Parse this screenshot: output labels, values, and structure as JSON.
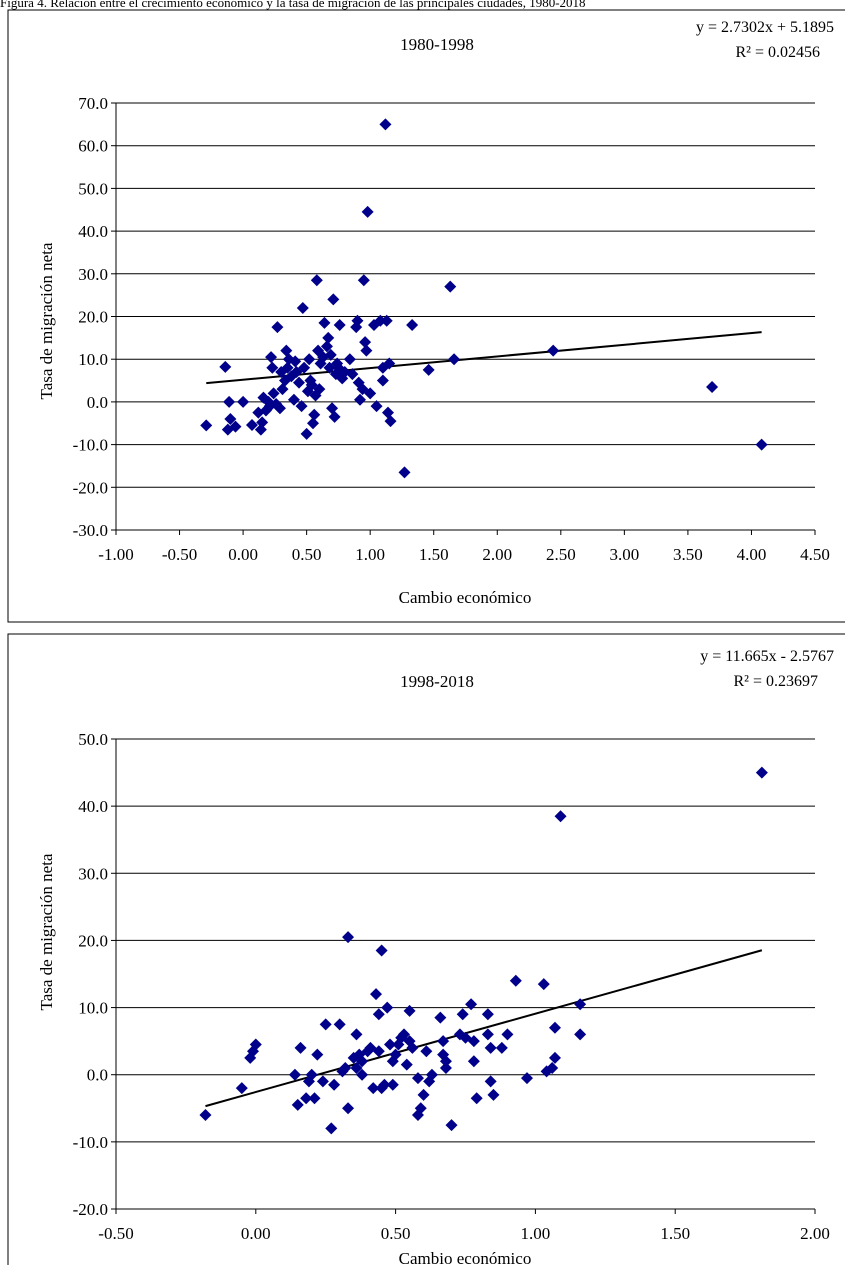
{
  "caption": "Figura 4. Relación entre el crecimiento económico y la tasa de migración de las principales ciudades, 1980-2018",
  "chart_data": [
    {
      "type": "scatter",
      "title": "1980-1998",
      "xlabel": "Cambio económico",
      "ylabel": "Tasa de migración neta",
      "xlim": [
        -1.0,
        4.5
      ],
      "ylim": [
        -30.0,
        70.0
      ],
      "xticks": [
        "-1.00",
        "-0.50",
        "0.00",
        "0.50",
        "1.00",
        "1.50",
        "2.00",
        "2.50",
        "3.00",
        "3.50",
        "4.00",
        "4.50"
      ],
      "yticks": [
        "70.0",
        "60.0",
        "50.0",
        "40.0",
        "30.0",
        "20.0",
        "10.0",
        "0.0",
        "-10.0",
        "-20.0",
        "-30.0"
      ],
      "grid": "horizontal",
      "marker_color": "#00008B",
      "trendline": {
        "slope": 2.7302,
        "intercept": 5.1895,
        "x_range": [
          -0.29,
          4.08
        ]
      },
      "equation": "y = 2.7302x + 5.1895",
      "r2": "R² = 0.02456",
      "points": [
        [
          -0.29,
          -5.5
        ],
        [
          -0.14,
          8.2
        ],
        [
          -0.12,
          -6.5
        ],
        [
          -0.11,
          0.0
        ],
        [
          -0.1,
          -4.0
        ],
        [
          -0.06,
          -5.8
        ],
        [
          0.0,
          0.0
        ],
        [
          0.07,
          -5.4
        ],
        [
          0.12,
          -2.5
        ],
        [
          0.14,
          -6.5
        ],
        [
          0.15,
          -4.8
        ],
        [
          0.16,
          1.0
        ],
        [
          0.18,
          -2.0
        ],
        [
          0.2,
          0.0
        ],
        [
          0.21,
          -1.0
        ],
        [
          0.22,
          10.5
        ],
        [
          0.23,
          8.0
        ],
        [
          0.24,
          2.0
        ],
        [
          0.26,
          -0.5
        ],
        [
          0.27,
          17.5
        ],
        [
          0.29,
          -1.5
        ],
        [
          0.3,
          7.0
        ],
        [
          0.31,
          3.0
        ],
        [
          0.33,
          5.0
        ],
        [
          0.34,
          12.0
        ],
        [
          0.35,
          8.0
        ],
        [
          0.36,
          10.0
        ],
        [
          0.38,
          6.0
        ],
        [
          0.4,
          0.5
        ],
        [
          0.41,
          9.5
        ],
        [
          0.42,
          7.0
        ],
        [
          0.44,
          4.5
        ],
        [
          0.46,
          -1.0
        ],
        [
          0.47,
          22.0
        ],
        [
          0.48,
          8.0
        ],
        [
          0.5,
          -7.5
        ],
        [
          0.51,
          2.5
        ],
        [
          0.52,
          10.0
        ],
        [
          0.53,
          5.0
        ],
        [
          0.54,
          4.0
        ],
        [
          0.55,
          -5.0
        ],
        [
          0.56,
          -3.0
        ],
        [
          0.57,
          1.5
        ],
        [
          0.58,
          28.5
        ],
        [
          0.59,
          12.0
        ],
        [
          0.6,
          3.0
        ],
        [
          0.61,
          9.0
        ],
        [
          0.63,
          10.5
        ],
        [
          0.64,
          18.5
        ],
        [
          0.66,
          13.0
        ],
        [
          0.67,
          15.0
        ],
        [
          0.68,
          8.0
        ],
        [
          0.69,
          11.0
        ],
        [
          0.7,
          -1.5
        ],
        [
          0.71,
          24.0
        ],
        [
          0.72,
          -3.5
        ],
        [
          0.73,
          6.5
        ],
        [
          0.74,
          9.0
        ],
        [
          0.75,
          8.0
        ],
        [
          0.76,
          18.0
        ],
        [
          0.78,
          5.5
        ],
        [
          0.8,
          7.0
        ],
        [
          0.84,
          10.0
        ],
        [
          0.86,
          6.5
        ],
        [
          0.89,
          17.5
        ],
        [
          0.9,
          19.0
        ],
        [
          0.91,
          4.5
        ],
        [
          0.92,
          0.5
        ],
        [
          0.94,
          3.0
        ],
        [
          0.95,
          28.5
        ],
        [
          0.96,
          14.0
        ],
        [
          0.97,
          12.0
        ],
        [
          0.98,
          44.5
        ],
        [
          1.0,
          2.0
        ],
        [
          1.03,
          18.0
        ],
        [
          1.05,
          -1.0
        ],
        [
          1.08,
          19.0
        ],
        [
          1.1,
          8.0
        ],
        [
          1.1,
          5.0
        ],
        [
          1.12,
          65.0
        ],
        [
          1.13,
          19.0
        ],
        [
          1.14,
          -2.5
        ],
        [
          1.15,
          9.0
        ],
        [
          1.16,
          -4.5
        ],
        [
          1.27,
          -16.5
        ],
        [
          1.33,
          18.0
        ],
        [
          1.46,
          7.5
        ],
        [
          1.63,
          27.0
        ],
        [
          1.66,
          10.0
        ],
        [
          2.44,
          12.0
        ],
        [
          3.69,
          3.5
        ],
        [
          4.08,
          -10.0
        ]
      ]
    },
    {
      "type": "scatter",
      "title": "1998-2018",
      "xlabel": "Cambio económico",
      "ylabel": "Tasa de migración neta",
      "xlim": [
        -0.5,
        2.0
      ],
      "ylim": [
        -20.0,
        50.0
      ],
      "xticks": [
        "-0.50",
        "0.00",
        "0.50",
        "1.00",
        "1.50",
        "2.00"
      ],
      "yticks": [
        "50.0",
        "40.0",
        "30.0",
        "20.0",
        "10.0",
        "0.0",
        "-10.0",
        "-20.0"
      ],
      "grid": "horizontal",
      "marker_color": "#00008B",
      "trendline": {
        "slope": 11.665,
        "intercept": -2.5767,
        "x_range": [
          -0.18,
          1.81
        ]
      },
      "equation": "y = 11.665x - 2.5767",
      "r2": "R² = 0.23697",
      "points": [
        [
          -0.18,
          -6.0
        ],
        [
          -0.05,
          -2.0
        ],
        [
          -0.02,
          2.5
        ],
        [
          -0.01,
          3.5
        ],
        [
          0.0,
          4.5
        ],
        [
          0.14,
          0.0
        ],
        [
          0.15,
          -4.5
        ],
        [
          0.16,
          4.0
        ],
        [
          0.18,
          -3.5
        ],
        [
          0.19,
          -1.0
        ],
        [
          0.2,
          0.0
        ],
        [
          0.21,
          -3.5
        ],
        [
          0.22,
          3.0
        ],
        [
          0.24,
          -1.0
        ],
        [
          0.25,
          7.5
        ],
        [
          0.27,
          -8.0
        ],
        [
          0.28,
          -1.5
        ],
        [
          0.3,
          7.5
        ],
        [
          0.31,
          0.5
        ],
        [
          0.32,
          1.0
        ],
        [
          0.33,
          20.5
        ],
        [
          0.33,
          -5.0
        ],
        [
          0.35,
          2.5
        ],
        [
          0.36,
          6.0
        ],
        [
          0.36,
          1.0
        ],
        [
          0.37,
          3.0
        ],
        [
          0.38,
          0.0
        ],
        [
          0.38,
          2.0
        ],
        [
          0.4,
          3.5
        ],
        [
          0.41,
          4.0
        ],
        [
          0.42,
          -2.0
        ],
        [
          0.43,
          12.0
        ],
        [
          0.44,
          9.0
        ],
        [
          0.44,
          3.5
        ],
        [
          0.45,
          -2.0
        ],
        [
          0.45,
          18.5
        ],
        [
          0.46,
          -1.5
        ],
        [
          0.47,
          10.0
        ],
        [
          0.48,
          4.5
        ],
        [
          0.49,
          2.0
        ],
        [
          0.49,
          -1.5
        ],
        [
          0.5,
          3.0
        ],
        [
          0.51,
          4.5
        ],
        [
          0.52,
          5.5
        ],
        [
          0.53,
          6.0
        ],
        [
          0.54,
          1.5
        ],
        [
          0.55,
          5.0
        ],
        [
          0.55,
          9.5
        ],
        [
          0.56,
          4.0
        ],
        [
          0.58,
          -0.5
        ],
        [
          0.58,
          -6.0
        ],
        [
          0.59,
          -5.0
        ],
        [
          0.6,
          -3.0
        ],
        [
          0.61,
          3.5
        ],
        [
          0.62,
          -1.0
        ],
        [
          0.63,
          0.0
        ],
        [
          0.66,
          8.5
        ],
        [
          0.67,
          3.0
        ],
        [
          0.67,
          5.0
        ],
        [
          0.68,
          1.0
        ],
        [
          0.68,
          2.0
        ],
        [
          0.7,
          -7.5
        ],
        [
          0.73,
          6.0
        ],
        [
          0.74,
          9.0
        ],
        [
          0.75,
          5.5
        ],
        [
          0.77,
          10.5
        ],
        [
          0.78,
          5.0
        ],
        [
          0.78,
          2.0
        ],
        [
          0.79,
          -3.5
        ],
        [
          0.83,
          6.0
        ],
        [
          0.83,
          9.0
        ],
        [
          0.84,
          4.0
        ],
        [
          0.84,
          -1.0
        ],
        [
          0.85,
          -3.0
        ],
        [
          0.88,
          4.0
        ],
        [
          0.9,
          6.0
        ],
        [
          0.93,
          14.0
        ],
        [
          0.97,
          -0.5
        ],
        [
          1.03,
          13.5
        ],
        [
          1.04,
          0.5
        ],
        [
          1.06,
          1.0
        ],
        [
          1.07,
          2.5
        ],
        [
          1.07,
          7.0
        ],
        [
          1.09,
          38.5
        ],
        [
          1.16,
          10.5
        ],
        [
          1.16,
          6.0
        ],
        [
          1.81,
          45.0
        ]
      ]
    }
  ]
}
